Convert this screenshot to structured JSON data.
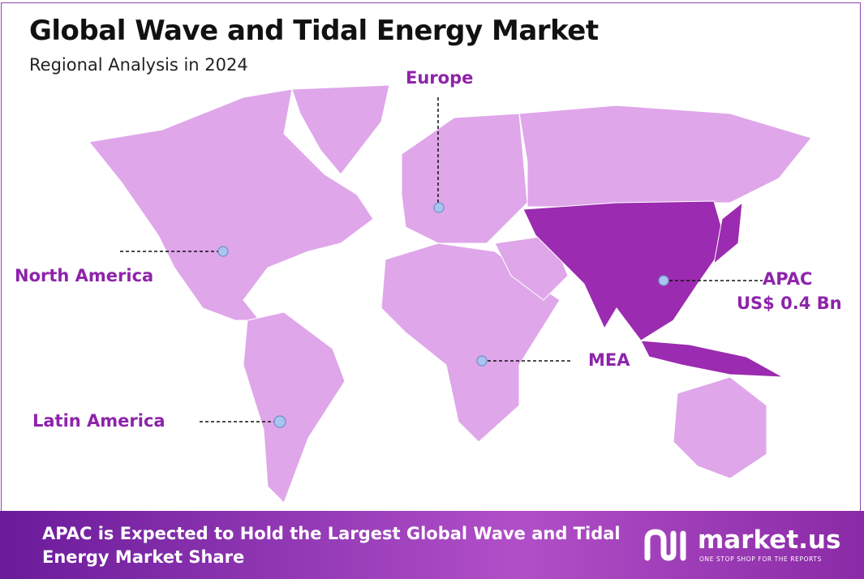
{
  "header": {
    "title": "Global Wave and Tidal Energy Market",
    "subtitle": "Regional Analysis in 2024"
  },
  "regions": [
    {
      "label": "North America"
    },
    {
      "label": "Europe"
    },
    {
      "label": "APAC",
      "value": "US$ 0.4 Bn"
    },
    {
      "label": "MEA"
    },
    {
      "label": "Latin America"
    }
  ],
  "footer": {
    "text": "APAC is Expected to Hold the Largest Global Wave and Tidal Energy Market Share",
    "logo": "market.us",
    "tagline": "ONE STOP SHOP FOR THE REPORTS"
  }
}
